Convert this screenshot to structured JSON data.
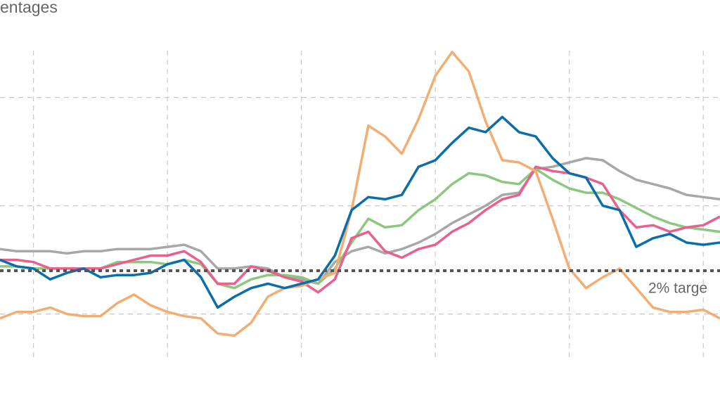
{
  "chart_data": {
    "type": "line",
    "title": "entages",
    "target": {
      "value": 2,
      "label": "2% targe"
    },
    "x": [
      -4,
      -2,
      0,
      2,
      4,
      6,
      8,
      10,
      12,
      14,
      16,
      18,
      20,
      22,
      24,
      26,
      28,
      30,
      32,
      34,
      36,
      38,
      40,
      42,
      44,
      46,
      48,
      50,
      52,
      54,
      56,
      58,
      60,
      62,
      64,
      66,
      68,
      70,
      72,
      74,
      76,
      78,
      80,
      82
    ],
    "xlim": [
      -4,
      82
    ],
    "xticks": [
      0,
      16,
      32,
      48,
      64,
      80
    ],
    "ylim": [
      -4.2,
      14.5
    ],
    "yticks": [
      0,
      5,
      10
    ],
    "grid": true,
    "series": [
      {
        "color": "#a7a7aa",
        "values": [
          3.0,
          2.9,
          2.9,
          2.9,
          2.8,
          2.9,
          2.9,
          3.0,
          3.0,
          3.0,
          3.1,
          3.2,
          2.9,
          2.1,
          2.1,
          2.2,
          2.1,
          1.7,
          1.6,
          1.4,
          2.4,
          2.9,
          3.1,
          2.8,
          3.0,
          3.3,
          3.7,
          4.2,
          4.6,
          5.0,
          5.5,
          5.6,
          6.7,
          6.8,
          7.0,
          7.2,
          7.1,
          6.6,
          6.2,
          6.0,
          5.8,
          5.5,
          5.4,
          5.3
        ]
      },
      {
        "color": "#8cc77f",
        "values": [
          2.2,
          2.2,
          2.1,
          2.1,
          2.1,
          2.1,
          2.1,
          2.4,
          2.4,
          2.4,
          2.3,
          2.5,
          2.3,
          1.4,
          1.2,
          1.6,
          1.8,
          1.8,
          1.7,
          1.4,
          2.1,
          3.3,
          4.4,
          4.0,
          4.1,
          4.8,
          5.3,
          6.0,
          6.5,
          6.4,
          6.1,
          6.0,
          6.7,
          6.2,
          5.8,
          5.6,
          5.6,
          5.3,
          4.9,
          4.5,
          4.2,
          4.0,
          3.9,
          3.8
        ]
      },
      {
        "color": "#e8618c",
        "values": [
          2.5,
          2.5,
          2.4,
          2.1,
          2.1,
          2.1,
          2.1,
          2.3,
          2.5,
          2.7,
          2.7,
          2.9,
          2.4,
          1.4,
          1.4,
          2.2,
          2.0,
          1.7,
          1.5,
          1.0,
          1.6,
          3.5,
          3.8,
          2.9,
          2.6,
          3.0,
          3.2,
          3.8,
          4.2,
          4.8,
          5.3,
          5.5,
          6.8,
          6.6,
          6.5,
          6.3,
          6.0,
          4.8,
          4.0,
          4.1,
          3.8,
          4.0,
          4.1,
          4.5
        ]
      },
      {
        "color": "#f2ae72",
        "values": [
          -0.2,
          0.1,
          0.1,
          0.3,
          0.0,
          -0.1,
          -0.1,
          0.5,
          0.9,
          0.4,
          0.1,
          -0.1,
          -0.2,
          -0.9,
          -1.0,
          -0.4,
          0.8,
          1.2,
          1.3,
          1.6,
          1.9,
          4.8,
          8.7,
          8.2,
          7.4,
          9.0,
          11.0,
          12.1,
          11.2,
          8.9,
          7.1,
          7.0,
          6.6,
          4.4,
          2.1,
          1.2,
          1.7,
          2.1,
          1.2,
          0.3,
          0.1,
          0.1,
          0.2,
          -0.2
        ]
      },
      {
        "color": "#0b6ea8",
        "values": [
          2.5,
          2.2,
          2.1,
          1.6,
          1.9,
          2.1,
          1.7,
          1.8,
          1.8,
          1.9,
          2.3,
          2.5,
          1.7,
          0.3,
          0.8,
          1.2,
          1.4,
          1.2,
          1.4,
          1.6,
          2.7,
          4.8,
          5.4,
          5.3,
          5.5,
          6.8,
          7.1,
          7.9,
          8.6,
          8.4,
          9.1,
          8.4,
          8.2,
          7.2,
          6.5,
          6.3,
          5.0,
          4.8,
          3.1,
          3.5,
          3.7,
          3.3,
          3.2,
          3.3
        ]
      }
    ]
  }
}
